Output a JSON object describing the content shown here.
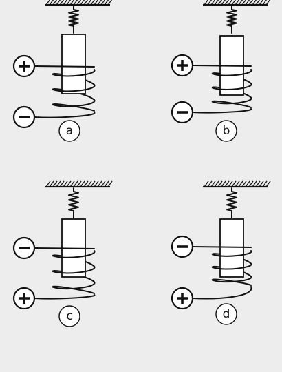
{
  "panels": [
    {
      "label": "a",
      "top_terminal": "+",
      "bottom_terminal": "-"
    },
    {
      "label": "b",
      "top_terminal": "+",
      "bottom_terminal": "-"
    },
    {
      "label": "c",
      "top_terminal": "-",
      "bottom_terminal": "+"
    },
    {
      "label": "d",
      "top_terminal": "-",
      "bottom_terminal": "+"
    }
  ],
  "colors": {
    "background": "#ededed",
    "ink": "#111111",
    "magnet_fill": "#ffffff"
  }
}
